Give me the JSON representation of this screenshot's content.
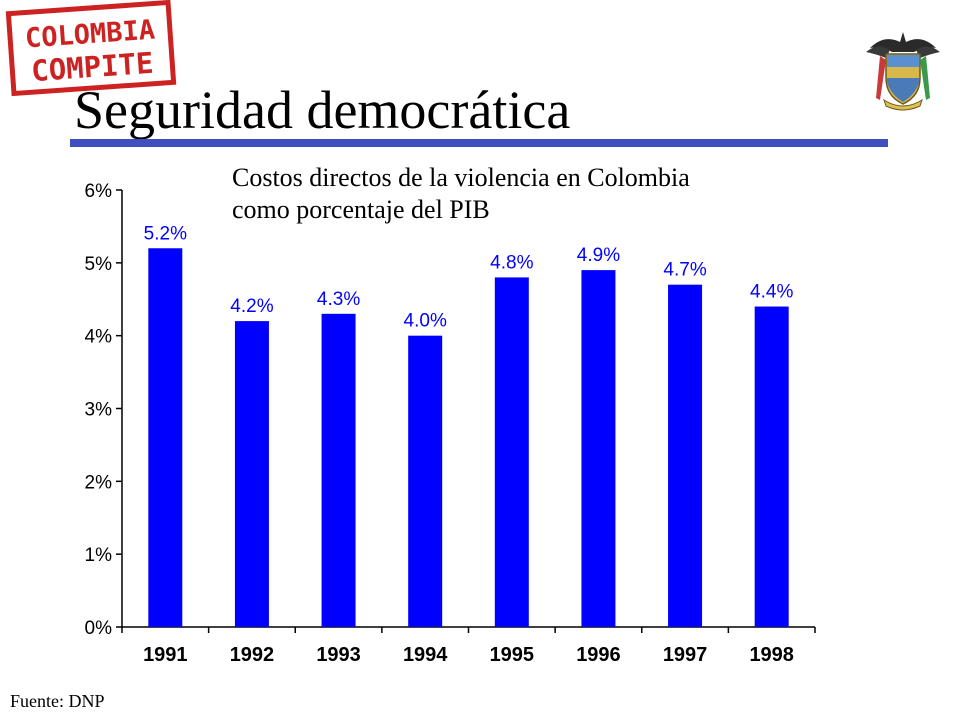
{
  "header": {
    "title": "Seguridad democrática",
    "stamp": {
      "line1": "COLOMBIA",
      "line2": "COMPITE",
      "color": "#cc2222"
    },
    "accent_color": "#3f4fc0",
    "crest": "colombian-coat-of-arms"
  },
  "chart_data": {
    "type": "bar",
    "title": [
      "Costos directos de la violencia en Colombia",
      "como porcentaje del PIB"
    ],
    "categories": [
      "1991",
      "1992",
      "1993",
      "1994",
      "1995",
      "1996",
      "1997",
      "1998"
    ],
    "values": [
      5.2,
      4.2,
      4.3,
      4.0,
      4.8,
      4.9,
      4.7,
      4.4
    ],
    "data_labels": [
      "5.2%",
      "4.2%",
      "4.3%",
      "4.0%",
      "4.8%",
      "4.9%",
      "4.7%",
      "4.4%"
    ],
    "yticks": [
      "0%",
      "1%",
      "2%",
      "3%",
      "4%",
      "5%",
      "6%"
    ],
    "ylim": [
      0,
      6
    ],
    "xlabel": "",
    "ylabel": "",
    "grid": false,
    "bar_color": "#0000ff",
    "label_color": "#0000ff"
  },
  "footer": {
    "source": "Fuente: DNP"
  }
}
